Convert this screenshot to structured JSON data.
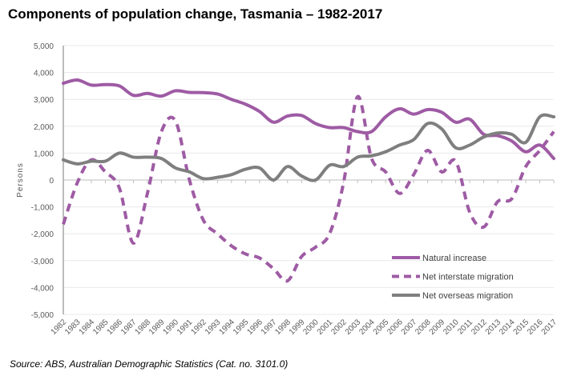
{
  "chart_data": {
    "type": "line",
    "title": "Components of population change, Tasmania – 1982-2017",
    "xlabel": "",
    "ylabel": "Persons",
    "ylim": [
      -5000,
      5000
    ],
    "yticks": [
      "5,000",
      "4,000",
      "3,000",
      "2,000",
      "1,000",
      "0",
      "-1,000",
      "-2,000",
      "-3,000",
      "-4,000",
      "-5,000"
    ],
    "grid": true,
    "legend_position": "bottom-right",
    "categories": [
      "1982",
      "1983",
      "1984",
      "1985",
      "1986",
      "1987",
      "1988",
      "1989",
      "1990",
      "1991",
      "1992",
      "1993",
      "1994",
      "1995",
      "1996",
      "1997",
      "1998",
      "1999",
      "2000",
      "2001",
      "2002",
      "2003",
      "2004",
      "2005",
      "2006",
      "2007",
      "2008",
      "2009",
      "2010",
      "2011",
      "2012",
      "2013",
      "2014",
      "2015",
      "2016",
      "2017"
    ],
    "series": [
      {
        "name": "Natural increase",
        "color": "#9E5BA4",
        "dash": false,
        "values": [
          3600,
          3720,
          3530,
          3550,
          3500,
          3150,
          3220,
          3120,
          3320,
          3260,
          3250,
          3200,
          3000,
          2820,
          2550,
          2150,
          2380,
          2400,
          2100,
          1950,
          1950,
          1800,
          1800,
          2350,
          2650,
          2450,
          2620,
          2520,
          2150,
          2260,
          1700,
          1650,
          1450,
          1050,
          1300,
          800
        ]
      },
      {
        "name": "Net interstate migration",
        "color": "#9E5BA4",
        "dash": true,
        "values": [
          -1650,
          -100,
          750,
          300,
          -300,
          -2350,
          -500,
          1800,
          2200,
          0,
          -1500,
          -2000,
          -2450,
          -2750,
          -2900,
          -3300,
          -3750,
          -2850,
          -2500,
          -2000,
          -100,
          3100,
          800,
          300,
          -500,
          200,
          1100,
          300,
          700,
          -1200,
          -1750,
          -800,
          -700,
          500,
          1100,
          1800
        ]
      },
      {
        "name": "Net overseas migration",
        "color": "#7F7F7F",
        "dash": false,
        "values": [
          750,
          600,
          700,
          700,
          1000,
          850,
          850,
          800,
          450,
          300,
          50,
          100,
          200,
          400,
          450,
          0,
          500,
          150,
          0,
          550,
          500,
          850,
          900,
          1050,
          1300,
          1500,
          2100,
          1900,
          1200,
          1300,
          1600,
          1750,
          1700,
          1400,
          2350,
          2350
        ]
      }
    ]
  },
  "source": "Source:  ABS, Australian Demographic Statistics (Cat. no. 3101.0)"
}
